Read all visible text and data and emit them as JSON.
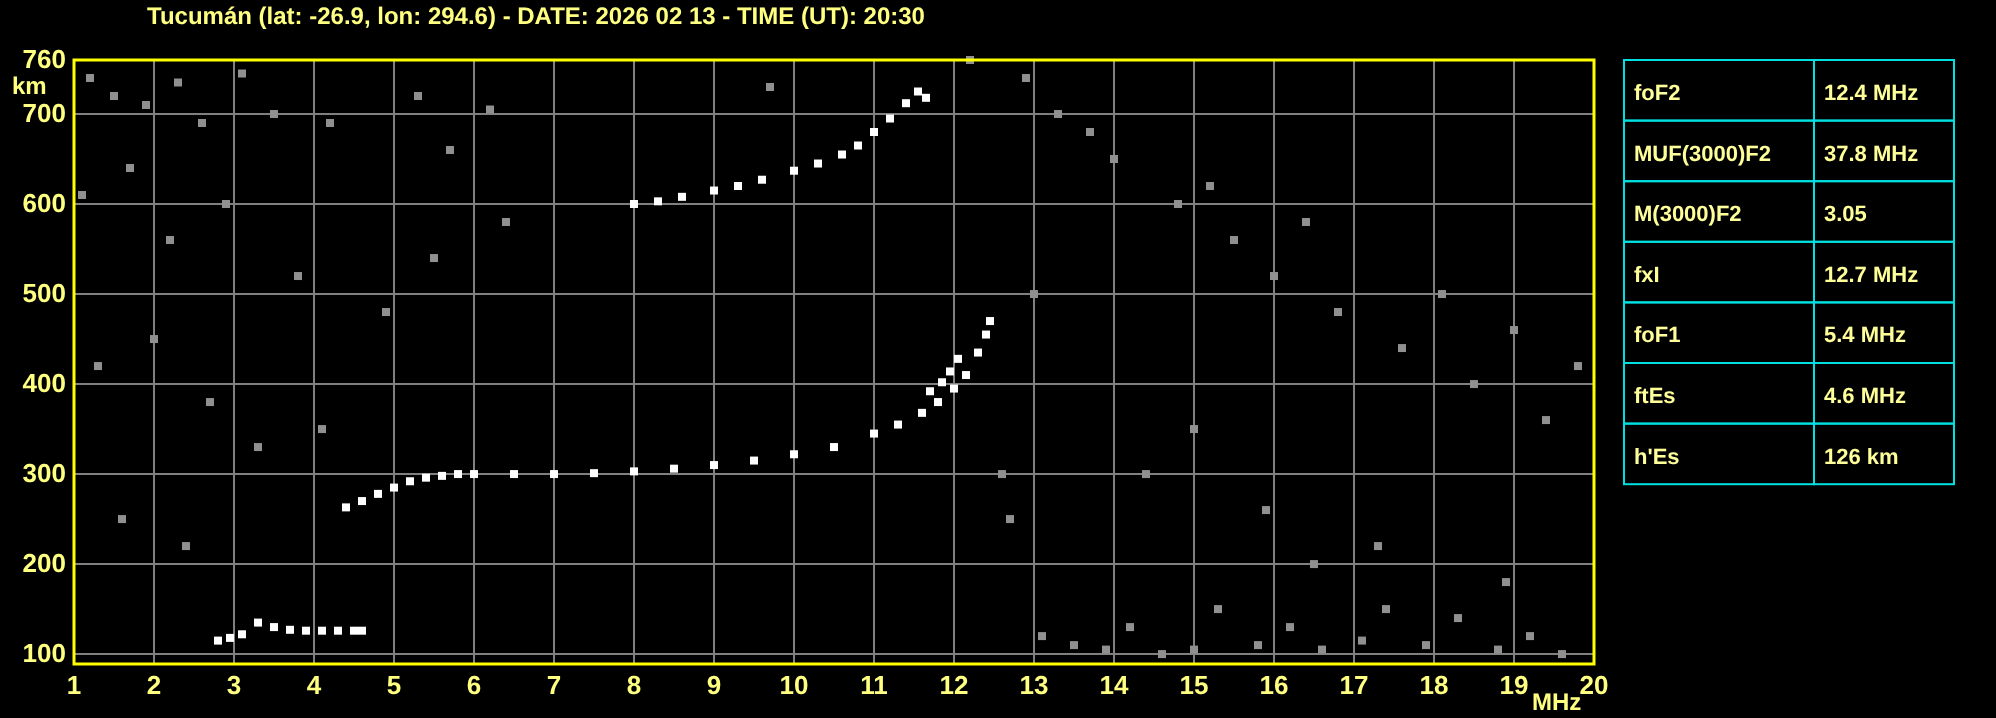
{
  "chart_data": {
    "type": "scatter",
    "title": "Tucumán (lat: -26.9, lon: 294.6) - DATE: 2026 02 13 - TIME (UT): 20:30",
    "xlabel": "MHz",
    "ylabel": "km",
    "xlim": [
      1,
      20
    ],
    "ylim": [
      89,
      760
    ],
    "xticks": [
      1,
      2,
      3,
      4,
      5,
      6,
      7,
      8,
      9,
      10,
      11,
      12,
      13,
      14,
      15,
      16,
      17,
      18,
      19,
      20
    ],
    "yticks": [
      100,
      200,
      300,
      400,
      500,
      600,
      700,
      760
    ],
    "grid": true,
    "marker": "square",
    "series": [
      {
        "color": "#ffffff",
        "x": [
          4.4,
          4.6,
          4.8,
          5.0,
          5.2,
          5.4,
          5.6,
          5.8,
          6.0,
          6.5,
          7.0,
          7.5,
          8.0,
          8.5,
          9.0,
          9.5,
          10.0,
          10.5,
          11.0,
          11.3,
          11.6,
          11.8,
          12.0,
          12.15,
          12.3,
          12.4,
          12.45
        ],
        "values": [
          263,
          270,
          278,
          285,
          292,
          296,
          298,
          300,
          300,
          300,
          300,
          301,
          303,
          306,
          310,
          315,
          322,
          330,
          345,
          355,
          368,
          380,
          395,
          410,
          435,
          455,
          470
        ]
      },
      {
        "color": "#ffffff",
        "x": [
          11.7,
          11.85,
          11.95,
          12.05
        ],
        "values": [
          392,
          402,
          414,
          428
        ]
      },
      {
        "color": "#ffffff",
        "x": [
          8.0,
          8.3,
          8.6,
          9.0,
          9.3,
          9.6,
          10.0,
          10.3,
          10.6,
          10.8,
          11.0,
          11.2,
          11.4,
          11.55,
          11.65
        ],
        "values": [
          600,
          603,
          608,
          615,
          620,
          627,
          637,
          645,
          655,
          665,
          680,
          695,
          712,
          725,
          718
        ]
      },
      {
        "color": "#ffffff",
        "x": [
          2.8,
          2.95,
          3.1,
          3.3,
          3.5,
          3.7,
          3.9,
          4.1,
          4.3,
          4.5,
          4.6
        ],
        "values": [
          115,
          118,
          122,
          135,
          130,
          127,
          126,
          126,
          126,
          126,
          126
        ]
      },
      {
        "color": "#909090",
        "x": [
          1.2,
          1.5,
          1.9,
          2.3,
          2.6,
          3.1,
          3.5,
          4.2,
          5.3,
          5.7,
          6.2,
          1.1,
          1.7,
          2.2,
          2.9,
          3.8,
          4.9,
          5.5,
          1.3,
          2.0,
          2.7,
          3.3,
          4.1,
          1.6,
          2.4,
          12.6,
          12.7,
          13.1,
          13.5,
          13.9,
          14.2,
          14.6,
          15.0,
          15.3,
          15.8,
          16.2,
          16.6,
          17.1,
          17.4,
          17.9,
          18.3,
          18.8,
          19.2,
          19.6,
          13.3,
          14.0,
          14.8,
          15.5,
          16.0,
          16.8,
          17.6,
          18.5,
          19.4,
          12.9,
          13.7,
          15.2,
          16.4,
          18.1,
          19.0,
          19.8,
          14.4,
          15.9,
          17.3,
          18.9,
          6.4,
          9.7,
          12.2,
          13.0,
          15.0,
          16.5
        ],
        "values": [
          740,
          720,
          710,
          735,
          690,
          745,
          700,
          690,
          720,
          660,
          705,
          610,
          640,
          560,
          600,
          520,
          480,
          540,
          420,
          450,
          380,
          330,
          350,
          250,
          220,
          300,
          250,
          120,
          110,
          105,
          130,
          100,
          105,
          150,
          110,
          130,
          105,
          115,
          150,
          110,
          140,
          105,
          120,
          100,
          700,
          650,
          600,
          560,
          520,
          480,
          440,
          400,
          360,
          740,
          680,
          620,
          580,
          500,
          460,
          420,
          300,
          260,
          220,
          180,
          580,
          730,
          760,
          500,
          350,
          200
        ]
      }
    ],
    "annotations": [
      "foF2",
      "12.4 MHz",
      "MUF(3000)F2",
      "37.8 MHz",
      "M(3000)F2",
      "3.05",
      "fxI",
      "12.7 MHz",
      "foF1",
      "5.4 MHz",
      "ftEs",
      "4.6 MHz",
      "h'Es",
      "126 km"
    ]
  }
}
